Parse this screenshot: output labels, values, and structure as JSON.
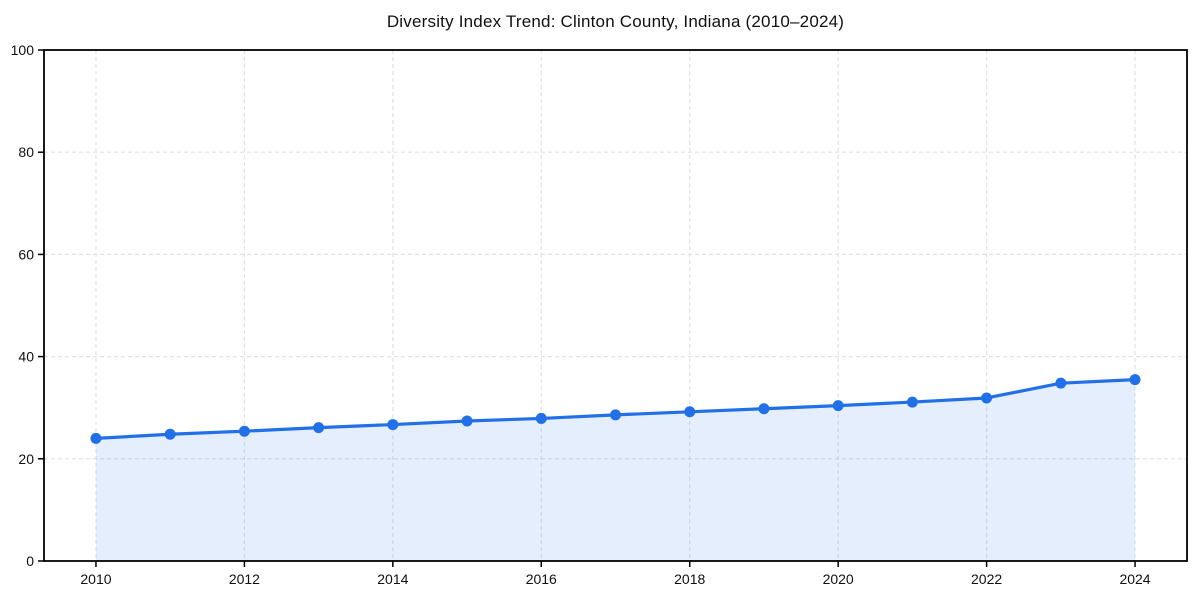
{
  "chart_data": {
    "type": "area",
    "title": "Diversity Index Trend: Clinton County, Indiana (2010–2024)",
    "series_name": "Diversity Index",
    "x": [
      2010,
      2011,
      2012,
      2013,
      2014,
      2015,
      2016,
      2017,
      2018,
      2019,
      2020,
      2021,
      2022,
      2023,
      2024
    ],
    "values": [
      24.0,
      24.8,
      25.4,
      26.1,
      26.7,
      27.4,
      27.9,
      28.6,
      29.2,
      29.8,
      30.4,
      31.1,
      31.9,
      34.8,
      35.5
    ],
    "xlabel": "",
    "ylabel": "",
    "xlim": [
      2009.3,
      2024.7
    ],
    "ylim": [
      0,
      100
    ],
    "xticks": [
      2010,
      2012,
      2014,
      2016,
      2018,
      2020,
      2022,
      2024
    ],
    "xtick_labels": [
      "2010",
      "2012",
      "2014",
      "2016",
      "2018",
      "2020",
      "2022",
      "2024"
    ],
    "yticks": [
      0,
      20,
      40,
      60,
      80,
      100
    ],
    "ytick_labels": [
      "0",
      "20",
      "40",
      "60",
      "80",
      "100"
    ],
    "grid": "dashed",
    "legend_position": "none",
    "colors": {
      "line": "#2270e8",
      "marker": "#2270e8",
      "fill": "rgba(34, 112, 232, 0.12)",
      "grid": "#e2e2e2",
      "spine": "#000000",
      "tick": "#000000",
      "background": "#ffffff",
      "title_text": "#111111",
      "tick_text": "#111111"
    }
  }
}
